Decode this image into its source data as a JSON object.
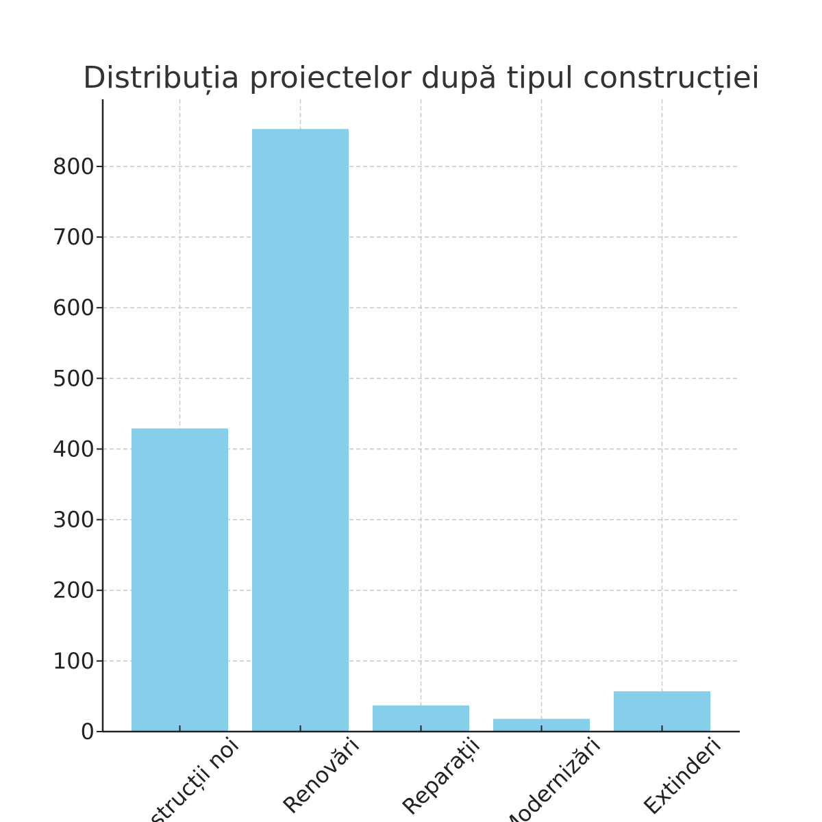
{
  "chart_data": {
    "type": "bar",
    "title": "Distribuția proiectelor după tipul construcției",
    "xlabel": "",
    "ylabel": "",
    "categories": [
      "Construcții noi",
      "Renovări",
      "Reparații",
      "Modernizări",
      "Extinderi"
    ],
    "values": [
      429,
      853,
      37,
      18,
      57
    ],
    "ylim": [
      0,
      895
    ],
    "yticks": [
      0,
      100,
      200,
      300,
      400,
      500,
      600,
      700,
      800
    ],
    "grid": true,
    "bar_color": "#87CEEB",
    "x_tick_rotation": 45
  }
}
